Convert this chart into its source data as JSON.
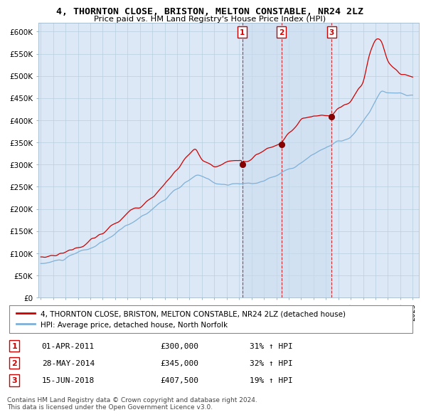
{
  "title": "4, THORNTON CLOSE, BRISTON, MELTON CONSTABLE, NR24 2LZ",
  "subtitle": "Price paid vs. HM Land Registry's House Price Index (HPI)",
  "ylim": [
    0,
    620000
  ],
  "yticks": [
    0,
    50000,
    100000,
    150000,
    200000,
    250000,
    300000,
    350000,
    400000,
    450000,
    500000,
    550000,
    600000
  ],
  "bg_color": "#dce8f5",
  "grid_color": "#b0c8e0",
  "line_color_price": "#cc0000",
  "line_color_hpi": "#7fb0d8",
  "sale_marker_color": "#880000",
  "legend_label_price": "4, THORNTON CLOSE, BRISTON, MELTON CONSTABLE, NR24 2LZ (detached house)",
  "legend_label_hpi": "HPI: Average price, detached house, North Norfolk",
  "sales": [
    {
      "label": "1",
      "date": "01-APR-2011",
      "price": 300000,
      "pct": "31%",
      "x_year": 2011.25
    },
    {
      "label": "2",
      "date": "28-MAY-2014",
      "price": 345000,
      "pct": "32%",
      "x_year": 2014.42
    },
    {
      "label": "3",
      "date": "15-JUN-2018",
      "price": 407500,
      "pct": "19%",
      "x_year": 2018.46
    }
  ],
  "shade_start": 2011.25,
  "shade_end": 2018.46,
  "footer1": "Contains HM Land Registry data © Crown copyright and database right 2024.",
  "footer2": "This data is licensed under the Open Government Licence v3.0.",
  "xticks": [
    1995,
    1996,
    1997,
    1998,
    1999,
    2000,
    2001,
    2002,
    2003,
    2004,
    2005,
    2006,
    2007,
    2008,
    2009,
    2010,
    2011,
    2012,
    2013,
    2014,
    2015,
    2016,
    2017,
    2018,
    2019,
    2020,
    2021,
    2022,
    2023,
    2024,
    2025
  ],
  "xlim": [
    1994.8,
    2025.5
  ]
}
